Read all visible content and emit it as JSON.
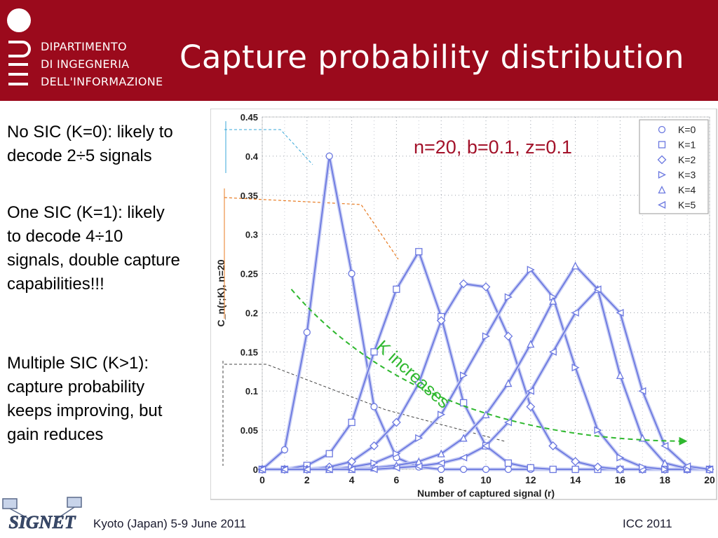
{
  "header": {
    "title": "Capture probability distribution",
    "dept_lines": [
      "DIPARTIMENTO",
      "DI INGEGNERIA",
      "DELL'INFORMAZIONE"
    ],
    "color": "#9b0a1c"
  },
  "notes": [
    {
      "text_lines": [
        "No SIC (K=0): likely to",
        "decode 2÷5 signals"
      ]
    },
    {
      "text_lines": [
        "One SIC (K=1): likely",
        "to decode 4÷10",
        "signals, double capture",
        "capabilities!!!"
      ]
    },
    {
      "text_lines": [
        "Multiple SIC (K>1):",
        "capture probability",
        "keeps improving, but",
        "gain reduces"
      ]
    }
  ],
  "footer": {
    "left": "Kyoto (Japan) 5-9 June 2011",
    "right": "ICC 2011",
    "logo_text": "SIGNET"
  },
  "chart_data": {
    "type": "line",
    "xlabel": "Number of captured signal (r)",
    "ylabel": "C_n(r;K), n=20",
    "xlim": [
      0,
      20
    ],
    "ylim": [
      0,
      0.45
    ],
    "xticks": [
      0,
      2,
      4,
      6,
      8,
      10,
      12,
      14,
      16,
      18,
      20
    ],
    "yticks": [
      0,
      0.05,
      0.1,
      0.15,
      0.2,
      0.25,
      0.3,
      0.35,
      0.4,
      0.45
    ],
    "ytick_labels": [
      "0",
      "0.05",
      "0.1",
      "0.15",
      "0.2",
      "0.25",
      "0.3",
      "0.35",
      "0.4",
      "0.45"
    ],
    "grid": true,
    "annotation_params": "n=20, b=0.1, z=0.1",
    "annotation_trend": "K increases",
    "legend_position": "top-right",
    "series_color": "#6b78e0",
    "x": [
      0,
      1,
      2,
      3,
      4,
      5,
      6,
      7,
      8,
      9,
      10,
      11,
      12,
      13,
      14,
      15,
      16,
      17,
      18,
      19,
      20
    ],
    "series": [
      {
        "name": "K=0",
        "marker": "circle",
        "values": [
          0,
          0.025,
          0.175,
          0.4,
          0.25,
          0.08,
          0.015,
          0.003,
          0,
          0,
          0,
          0,
          0,
          0,
          0,
          0,
          0,
          0,
          0,
          0,
          0
        ]
      },
      {
        "name": "K=1",
        "marker": "square",
        "values": [
          0,
          0,
          0.005,
          0.02,
          0.06,
          0.15,
          0.23,
          0.278,
          0.195,
          0.085,
          0.03,
          0.008,
          0.002,
          0,
          0,
          0,
          0,
          0,
          0,
          0,
          0
        ]
      },
      {
        "name": "K=2",
        "marker": "diamond",
        "values": [
          0,
          0,
          0,
          0.003,
          0.01,
          0.03,
          0.06,
          0.11,
          0.19,
          0.237,
          0.233,
          0.17,
          0.08,
          0.03,
          0.01,
          0.003,
          0,
          0,
          0,
          0,
          0
        ]
      },
      {
        "name": "K=3",
        "marker": "triangle-right",
        "values": [
          0,
          0,
          0,
          0,
          0.003,
          0.008,
          0.02,
          0.04,
          0.07,
          0.12,
          0.17,
          0.22,
          0.255,
          0.22,
          0.13,
          0.05,
          0.015,
          0.003,
          0,
          0,
          0
        ]
      },
      {
        "name": "K=4",
        "marker": "triangle-up",
        "values": [
          0,
          0,
          0,
          0,
          0,
          0.002,
          0.005,
          0.01,
          0.02,
          0.04,
          0.07,
          0.11,
          0.16,
          0.215,
          0.26,
          0.23,
          0.12,
          0.04,
          0.008,
          0.001,
          0
        ]
      },
      {
        "name": "K=5",
        "marker": "triangle-left",
        "values": [
          0,
          0,
          0,
          0,
          0,
          0,
          0.002,
          0.004,
          0.008,
          0.015,
          0.03,
          0.06,
          0.1,
          0.15,
          0.2,
          0.23,
          0.2,
          0.1,
          0.03,
          0.004,
          0
        ]
      }
    ]
  }
}
